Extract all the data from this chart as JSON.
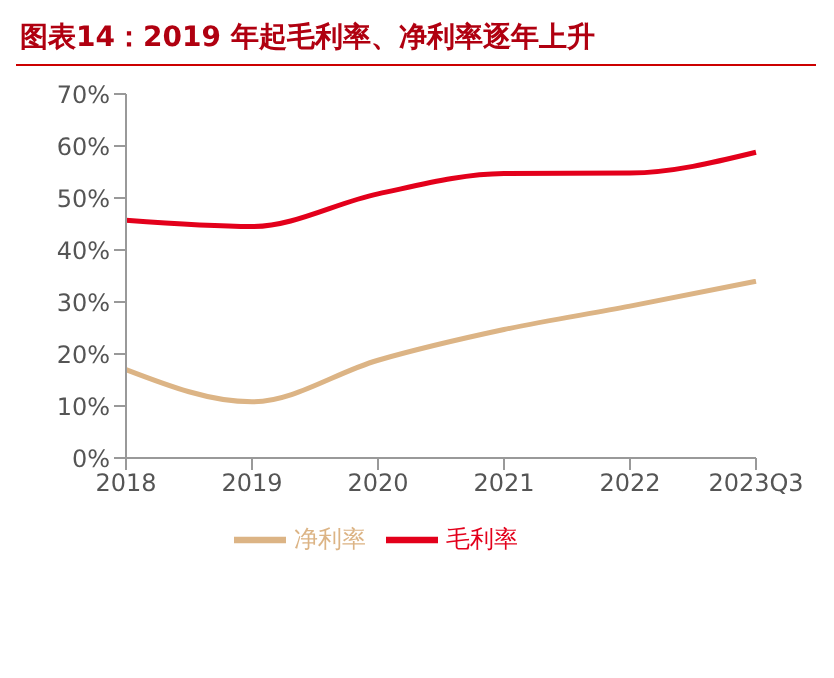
{
  "chart_data": {
    "type": "line",
    "title": "图表14：2019 年起毛利率、净利率逐年上升",
    "categories": [
      "2018",
      "2019",
      "2020",
      "2021",
      "2022",
      "2023Q3"
    ],
    "series": [
      {
        "name": "毛利率",
        "color": "#e3001b",
        "values": [
          45.7,
          44.5,
          50.8,
          54.7,
          54.8,
          58.8
        ]
      },
      {
        "name": "净利率",
        "color": "#dcb485",
        "values": [
          17,
          10.8,
          18.8,
          24.7,
          29.2,
          34
        ]
      }
    ],
    "ylim": [
      0,
      70
    ],
    "yticks": [
      {
        "value": 0,
        "label": "0%"
      },
      {
        "value": 10,
        "label": "10%"
      },
      {
        "value": 20,
        "label": "20%"
      },
      {
        "value": 30,
        "label": "30%"
      },
      {
        "value": 40,
        "label": "40%"
      },
      {
        "value": 50,
        "label": "50%"
      },
      {
        "value": 60,
        "label": "60%"
      },
      {
        "value": 70,
        "label": "70%"
      }
    ],
    "grid": false,
    "legend": "bottom",
    "marker": "none",
    "line_style": "solid"
  }
}
